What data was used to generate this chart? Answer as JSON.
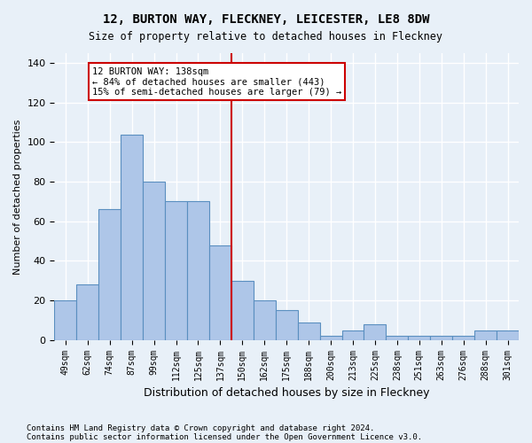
{
  "title": "12, BURTON WAY, FLECKNEY, LEICESTER, LE8 8DW",
  "subtitle": "Size of property relative to detached houses in Fleckney",
  "xlabel": "Distribution of detached houses by size in Fleckney",
  "ylabel": "Number of detached properties",
  "categories": [
    "49sqm",
    "62sqm",
    "74sqm",
    "87sqm",
    "99sqm",
    "112sqm",
    "125sqm",
    "137sqm",
    "150sqm",
    "162sqm",
    "175sqm",
    "188sqm",
    "200sqm",
    "213sqm",
    "225sqm",
    "238sqm",
    "251sqm",
    "263sqm",
    "276sqm",
    "288sqm",
    "301sqm"
  ],
  "values": [
    20,
    28,
    66,
    104,
    80,
    70,
    70,
    48,
    30,
    20,
    15,
    9,
    2,
    5,
    8,
    2,
    2,
    2,
    2,
    5,
    5
  ],
  "bar_color": "#aec6e8",
  "bar_edge_color": "#5a8fc0",
  "vline_color": "#cc0000",
  "annotation_text": "12 BURTON WAY: 138sqm\n← 84% of detached houses are smaller (443)\n15% of semi-detached houses are larger (79) →",
  "annotation_box_color": "#ffffff",
  "annotation_box_edge_color": "#cc0000",
  "bg_color": "#e8f0f8",
  "grid_color": "#ffffff",
  "footer_line1": "Contains HM Land Registry data © Crown copyright and database right 2024.",
  "footer_line2": "Contains public sector information licensed under the Open Government Licence v3.0.",
  "ylim": [
    0,
    145
  ],
  "yticks": [
    0,
    20,
    40,
    60,
    80,
    100,
    120,
    140
  ],
  "vline_x": 7.5
}
